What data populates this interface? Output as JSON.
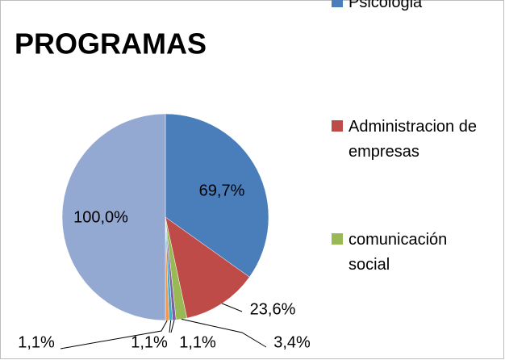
{
  "chart_data": {
    "type": "pie",
    "title": "PROGRAMAS",
    "categories": [
      "Psicologia",
      "Administracion de empresas",
      "comunicación social",
      null,
      null,
      null,
      null
    ],
    "values": [
      69.7,
      23.6,
      3.4,
      1.1,
      1.1,
      1.1,
      100.0
    ],
    "value_labels": [
      "69,7%",
      "23,6%",
      "3,4%",
      "1,1%",
      "1,1%",
      "1,1%",
      "100,0%"
    ],
    "colors": [
      "#4a7ebb",
      "#be4b48",
      "#98b954",
      "#7d60a0",
      "#46aac5",
      "#f79646",
      "#94a9d1"
    ]
  }
}
